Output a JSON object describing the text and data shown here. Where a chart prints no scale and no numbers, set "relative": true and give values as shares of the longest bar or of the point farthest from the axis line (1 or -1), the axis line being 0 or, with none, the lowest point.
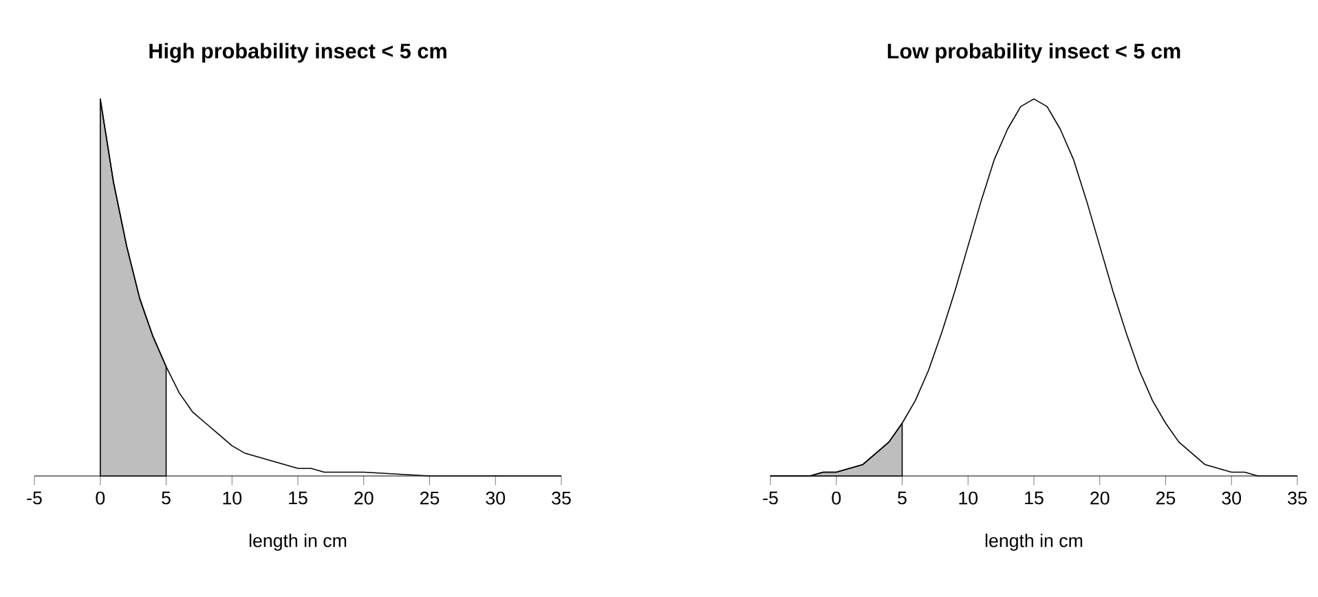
{
  "chart_data": [
    {
      "type": "line",
      "title": "High probability insect < 5 cm",
      "xlabel": "length in cm",
      "relative": true,
      "xlim": [
        -5,
        35
      ],
      "xticks": [
        -5,
        0,
        5,
        10,
        15,
        20,
        25,
        30,
        35
      ],
      "series": [
        {
          "type": "area",
          "color": "#bebebe",
          "x": [
            0,
            1,
            2,
            3,
            4,
            5
          ],
          "values": [
            1,
            0.78,
            0.61,
            0.47,
            0.37,
            0.29
          ]
        },
        {
          "color": "#000000",
          "x": [
            0,
            1,
            2,
            3,
            4,
            5,
            6,
            7,
            8,
            9,
            10,
            11,
            12,
            13,
            14,
            15,
            16,
            17,
            18,
            19,
            20,
            25,
            30,
            35
          ],
          "values": [
            1,
            0.78,
            0.61,
            0.47,
            0.37,
            0.29,
            0.22,
            0.17,
            0.14,
            0.11,
            0.08,
            0.06,
            0.05,
            0.04,
            0.03,
            0.02,
            0.02,
            0.01,
            0.01,
            0.01,
            0.01,
            0,
            0,
            0
          ]
        }
      ]
    },
    {
      "type": "line",
      "title": "Low probability insect < 5 cm",
      "xlabel": "length in cm",
      "relative": true,
      "xlim": [
        -5,
        35
      ],
      "xticks": [
        -5,
        0,
        5,
        10,
        15,
        20,
        25,
        30,
        35
      ],
      "series": [
        {
          "type": "area",
          "color": "#bebebe",
          "x": [
            -5,
            -4,
            -3,
            -2,
            -1,
            0,
            1,
            2,
            3,
            4,
            5
          ],
          "values": [
            0,
            0,
            0,
            0,
            0.01,
            0.01,
            0.02,
            0.03,
            0.06,
            0.09,
            0.14
          ]
        },
        {
          "color": "#000000",
          "x": [
            -5,
            -4,
            -3,
            -2,
            -1,
            0,
            1,
            2,
            3,
            4,
            5,
            6,
            7,
            8,
            9,
            10,
            11,
            12,
            13,
            14,
            15,
            16,
            17,
            18,
            19,
            20,
            21,
            22,
            23,
            24,
            25,
            26,
            27,
            28,
            29,
            30,
            31,
            32,
            33,
            34,
            35
          ],
          "values": [
            0,
            0,
            0,
            0,
            0.01,
            0.01,
            0.02,
            0.03,
            0.06,
            0.09,
            0.14,
            0.2,
            0.28,
            0.38,
            0.49,
            0.61,
            0.73,
            0.84,
            0.92,
            0.98,
            1,
            0.98,
            0.92,
            0.84,
            0.73,
            0.61,
            0.49,
            0.38,
            0.28,
            0.2,
            0.14,
            0.09,
            0.06,
            0.03,
            0.02,
            0.01,
            0.01,
            0,
            0,
            0,
            0
          ]
        }
      ]
    }
  ]
}
